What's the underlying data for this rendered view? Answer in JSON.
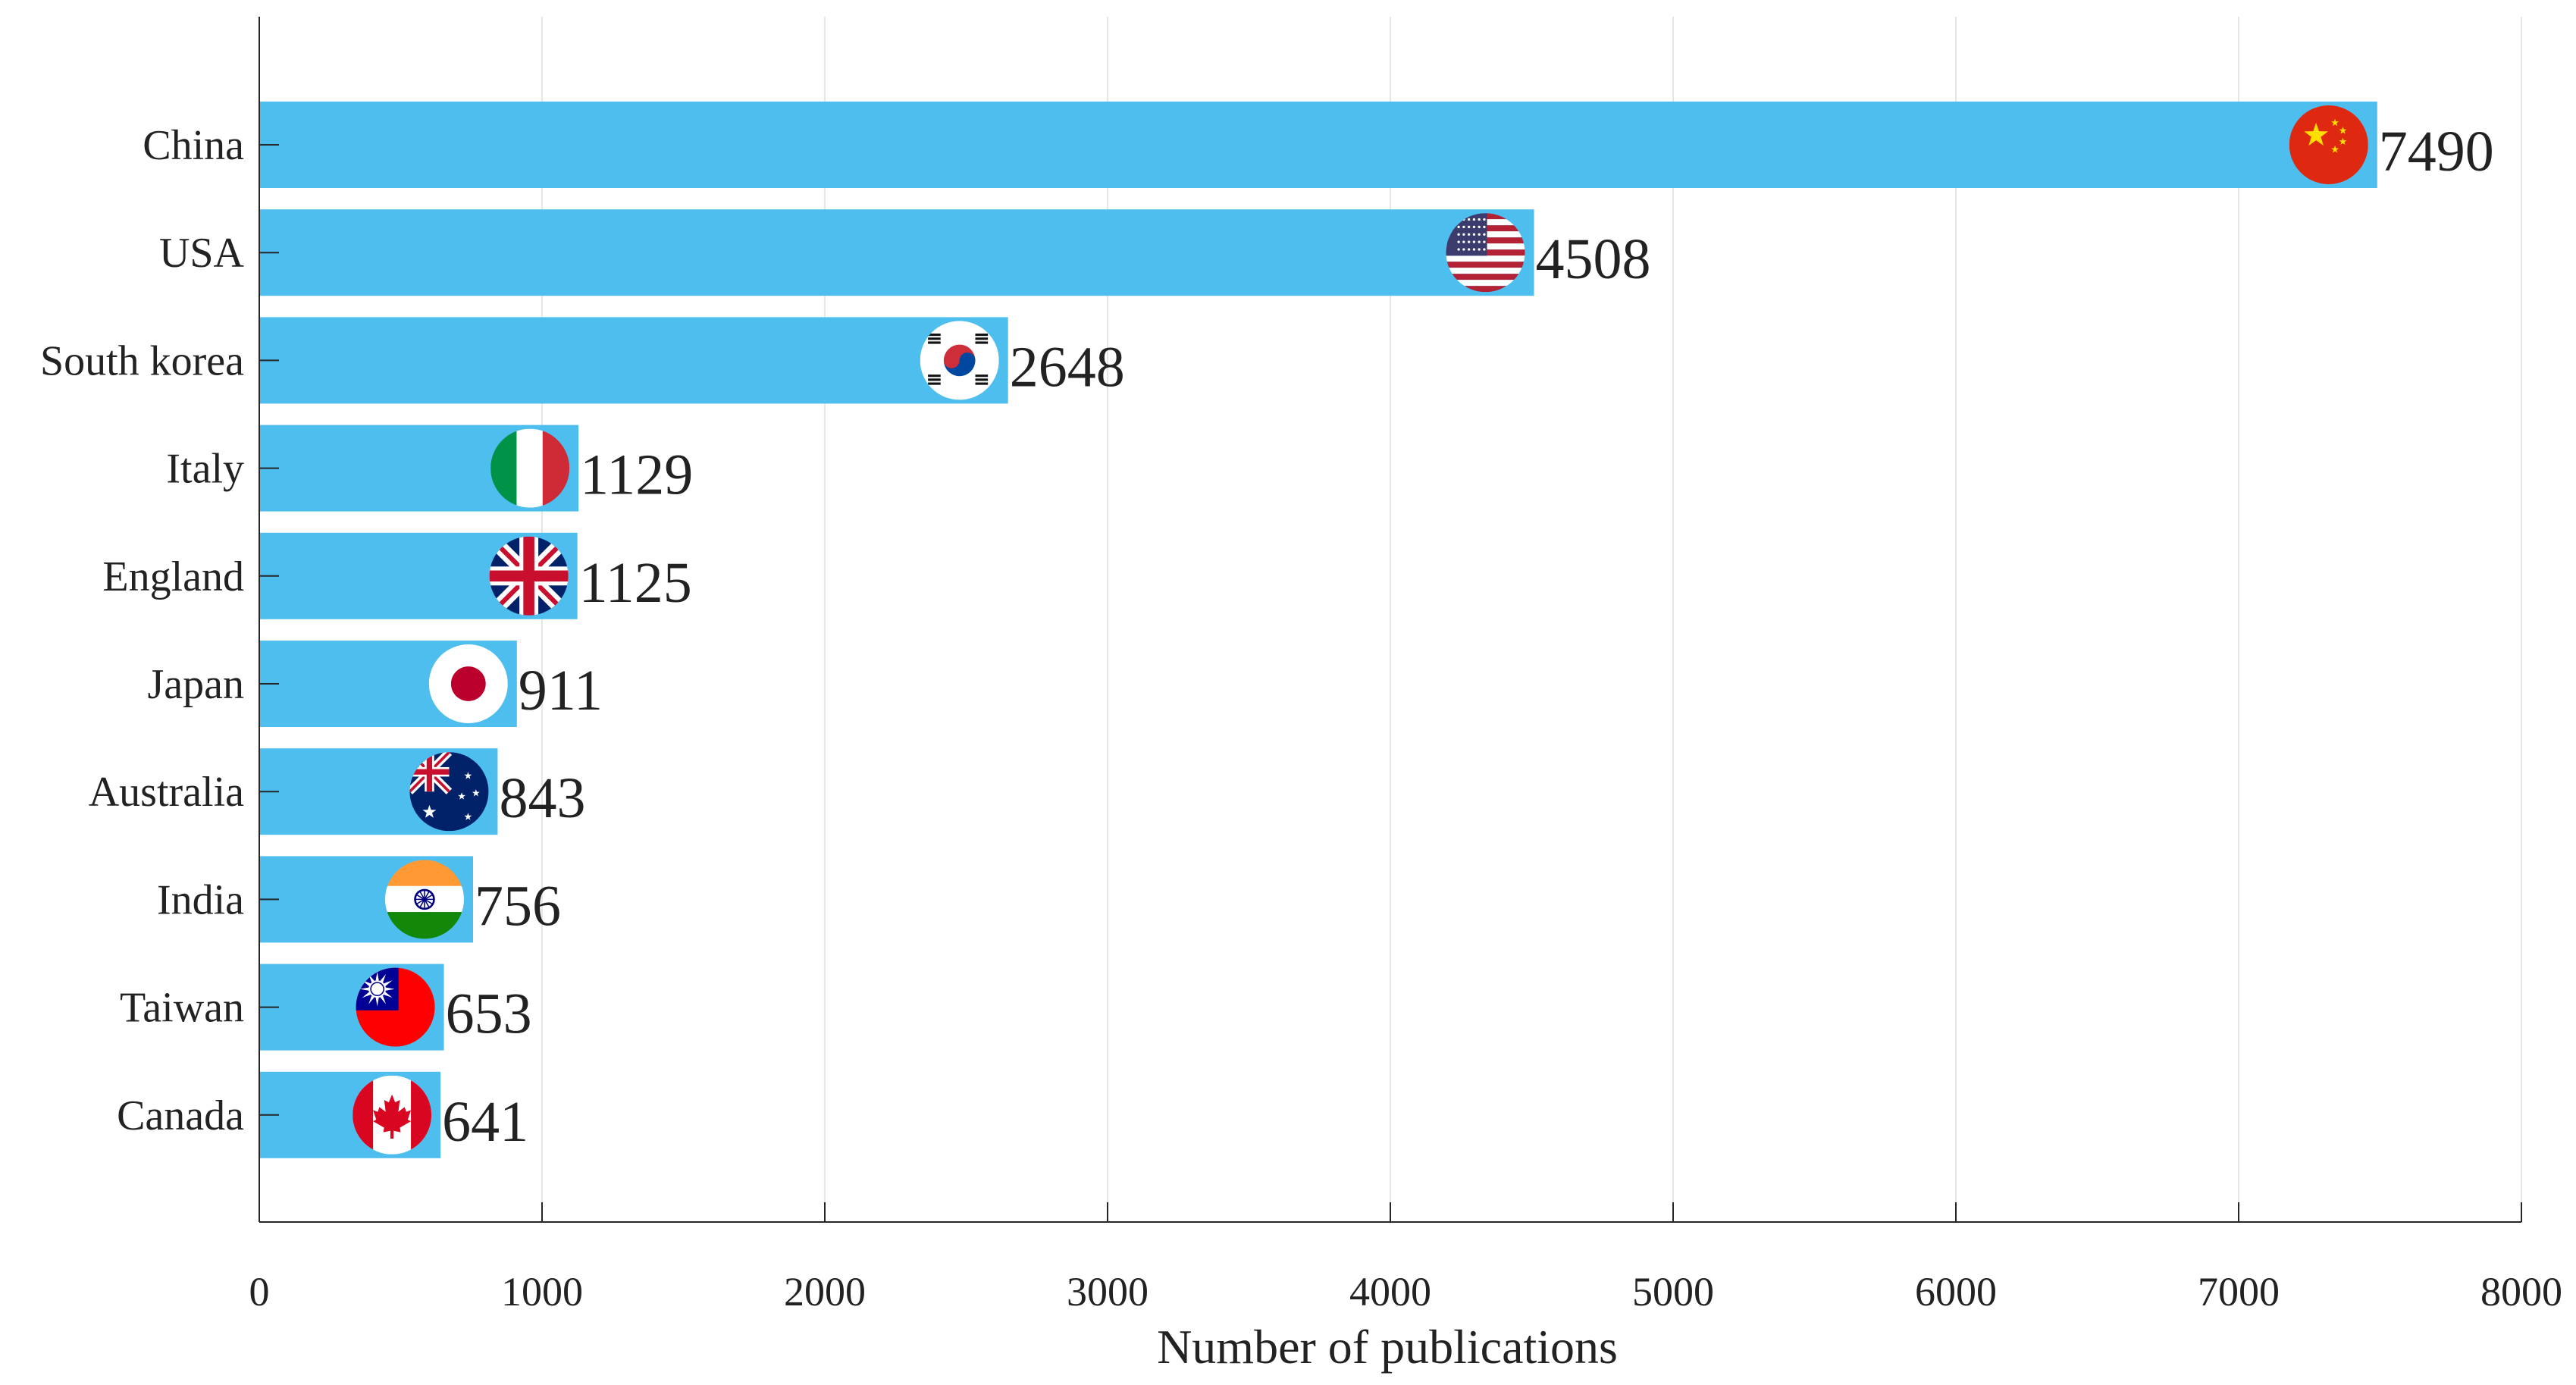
{
  "chart_data": {
    "type": "bar",
    "orientation": "horizontal",
    "categories": [
      "China",
      "USA",
      "South korea",
      "Italy",
      "England",
      "Japan",
      "Australia",
      "India",
      "Taiwan",
      "Canada"
    ],
    "values": [
      7490,
      4508,
      2648,
      1129,
      1125,
      911,
      843,
      756,
      653,
      641
    ],
    "value_labels": [
      "7490",
      "4508",
      "2648",
      "1129",
      "1125",
      "911",
      "843",
      "756",
      "653",
      "641"
    ],
    "flag_icons": [
      "flag-china-icon",
      "flag-usa-icon",
      "flag-south-korea-icon",
      "flag-italy-icon",
      "flag-england-icon",
      "flag-japan-icon",
      "flag-australia-icon",
      "flag-india-icon",
      "flag-taiwan-icon",
      "flag-canada-icon"
    ],
    "xlabel": "Number of publications",
    "ylabel": "",
    "title": "",
    "xlim": [
      0,
      8000
    ],
    "xticks": [
      0,
      1000,
      2000,
      3000,
      4000,
      5000,
      6000,
      7000,
      8000
    ],
    "xtick_labels": [
      "0",
      "1000",
      "2000",
      "3000",
      "4000",
      "5000",
      "6000",
      "7000",
      "8000"
    ],
    "grid": "vertical",
    "legend": "none",
    "colors": {
      "bar": "#4dbeee",
      "grid": "#e6e6e6",
      "axis": "#262626"
    }
  }
}
